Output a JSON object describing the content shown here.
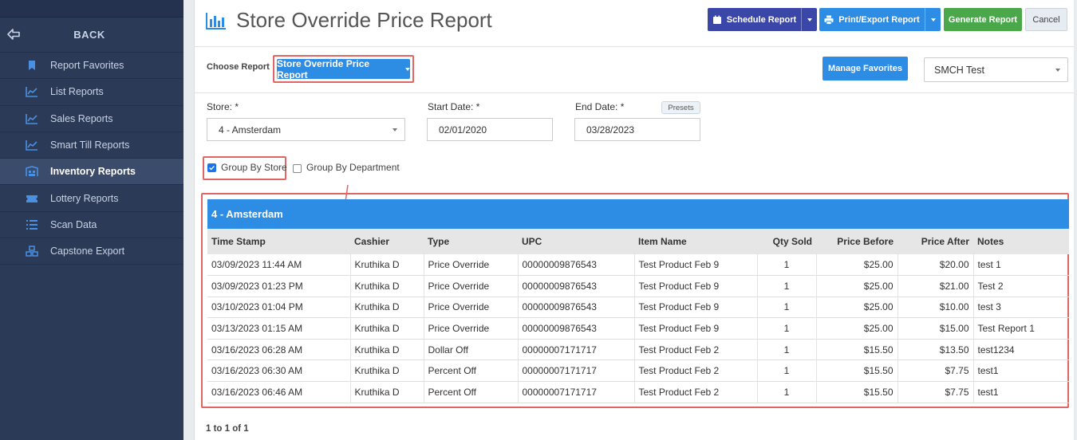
{
  "sidebar": {
    "back_label": "BACK",
    "items": [
      {
        "label": "Report Favorites",
        "icon": "bookmark-icon"
      },
      {
        "label": "List Reports",
        "icon": "chart-line-icon"
      },
      {
        "label": "Sales Reports",
        "icon": "chart-line-icon"
      },
      {
        "label": "Smart Till Reports",
        "icon": "chart-line-icon"
      },
      {
        "label": "Inventory Reports",
        "icon": "warehouse-icon",
        "active": true
      },
      {
        "label": "Lottery Reports",
        "icon": "ticket-icon"
      },
      {
        "label": "Scan Data",
        "icon": "list-icon"
      },
      {
        "label": "Capstone Export",
        "icon": "boxes-icon"
      }
    ]
  },
  "header": {
    "title": "Store Override Price Report",
    "schedule_label": "Schedule Report",
    "print_label": "Print/Export Report",
    "generate_label": "Generate Report",
    "cancel_label": "Cancel"
  },
  "choose": {
    "label": "Choose Report",
    "selected": "Store Override Price Report",
    "favorites_label": "Manage Favorites",
    "account": "SMCH Test"
  },
  "filters": {
    "store_label": "Store: *",
    "store_value": "4 - Amsterdam",
    "start_label": "Start Date: *",
    "start_value": "02/01/2020",
    "end_label": "End Date: *",
    "end_value": "03/28/2023",
    "presets_label": "Presets",
    "group_store_label": "Group By Store",
    "group_store_checked": true,
    "group_dept_label": "Group By Department",
    "group_dept_checked": false
  },
  "report": {
    "group_title": "4 - Amsterdam",
    "columns": [
      "Time Stamp",
      "Cashier",
      "Type",
      "UPC",
      "Item Name",
      "Qty Sold",
      "Price Before",
      "Price After",
      "Notes"
    ],
    "rows": [
      [
        "03/09/2023 11:44 AM",
        "Kruthika D",
        "Price Override",
        "00000009876543",
        "Test Product Feb 9",
        "1",
        "$25.00",
        "$20.00",
        "test 1"
      ],
      [
        "03/09/2023 01:23 PM",
        "Kruthika D",
        "Price Override",
        "00000009876543",
        "Test Product Feb 9",
        "1",
        "$25.00",
        "$21.00",
        "Test 2"
      ],
      [
        "03/10/2023 01:04 PM",
        "Kruthika D",
        "Price Override",
        "00000009876543",
        "Test Product Feb 9",
        "1",
        "$25.00",
        "$10.00",
        "test 3"
      ],
      [
        "03/13/2023 01:15 AM",
        "Kruthika D",
        "Price Override",
        "00000009876543",
        "Test Product Feb 9",
        "1",
        "$25.00",
        "$15.00",
        "Test Report 1"
      ],
      [
        "03/16/2023 06:28 AM",
        "Kruthika D",
        "Dollar Off",
        "00000007171717",
        "Test Product Feb 2",
        "1",
        "$15.50",
        "$13.50",
        "test1234"
      ],
      [
        "03/16/2023 06:30 AM",
        "Kruthika D",
        "Percent Off",
        "00000007171717",
        "Test Product Feb 2",
        "1",
        "$15.50",
        "$7.75",
        "test1"
      ],
      [
        "03/16/2023 06:46 AM",
        "Kruthika D",
        "Percent Off",
        "00000007171717",
        "Test Product Feb 2",
        "1",
        "$15.50",
        "$7.75",
        "test1"
      ]
    ],
    "pager": "1 to 1 of 1"
  },
  "colors": {
    "sidebar_bg": "#2b3a57",
    "primary": "#2d8ce3",
    "schedule": "#3a46a8",
    "generate": "#4aa84a",
    "highlight": "#e06666"
  }
}
